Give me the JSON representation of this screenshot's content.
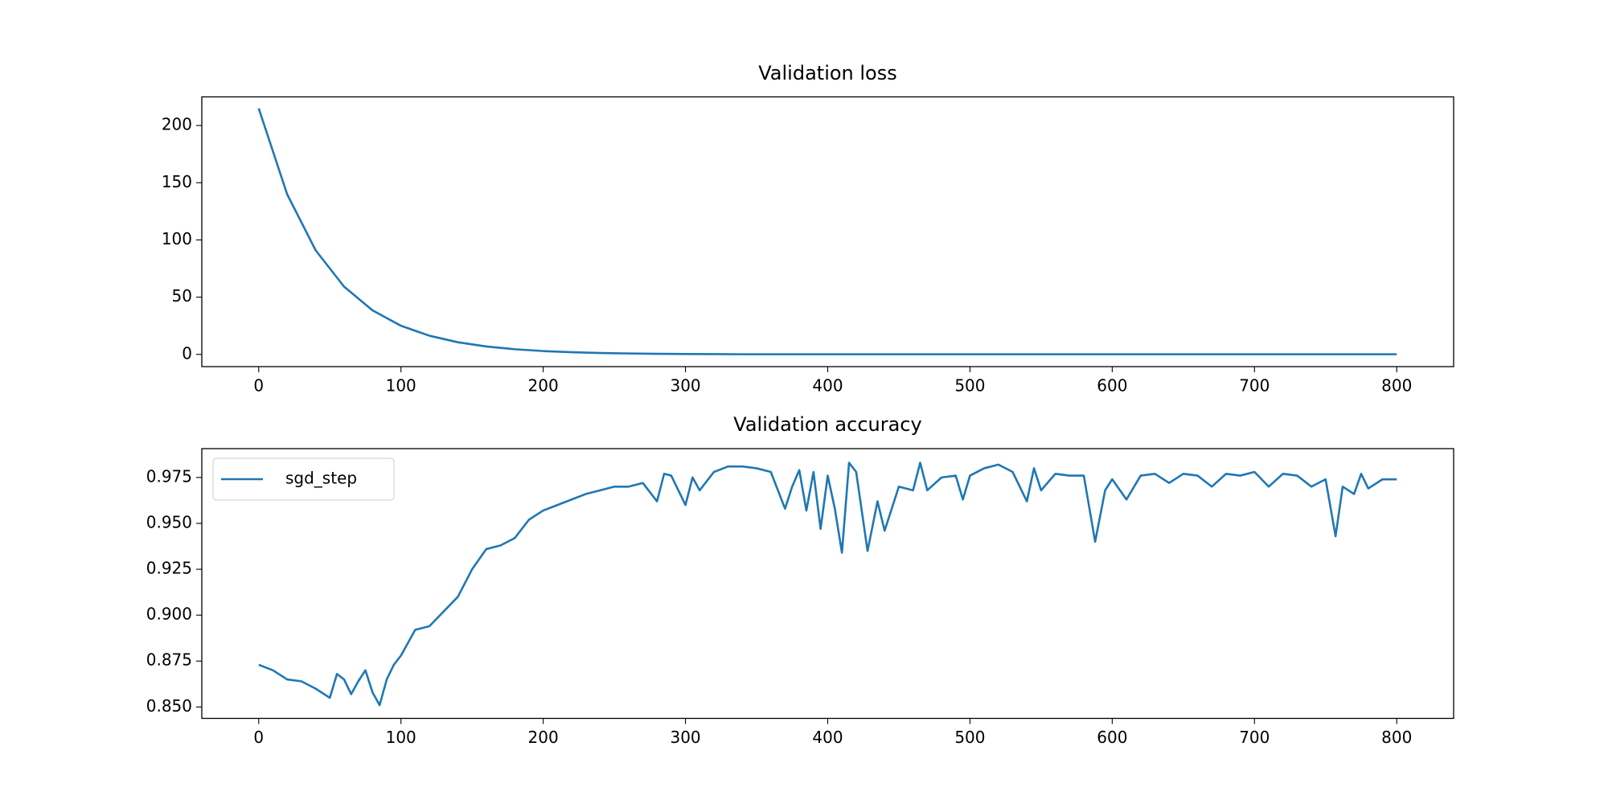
{
  "chart_data": [
    {
      "type": "line",
      "title": "Validation loss",
      "color": "#1f77b4",
      "x": [
        0,
        20,
        40,
        60,
        80,
        100,
        120,
        140,
        160,
        180,
        200,
        220,
        240,
        260,
        280,
        300,
        320,
        340,
        360,
        380,
        400,
        420,
        440,
        460,
        480,
        500,
        520,
        540,
        560,
        580,
        600,
        620,
        640,
        660,
        680,
        700,
        720,
        740,
        760,
        780,
        800
      ],
      "values": [
        215,
        139.9,
        91.0,
        59.2,
        38.5,
        25.0,
        16.3,
        10.6,
        6.9,
        4.5,
        2.9,
        1.9,
        1.2,
        0.8,
        0.5,
        0.3,
        0.2,
        0.1,
        0.1,
        0.1,
        0.1,
        0.1,
        0.1,
        0.1,
        0.1,
        0.1,
        0.1,
        0.1,
        0.1,
        0.1,
        0.1,
        0.1,
        0.1,
        0.1,
        0.1,
        0.1,
        0.1,
        0.1,
        0.1,
        0.1,
        0.1
      ],
      "xlim": [
        -40,
        840
      ],
      "xticks": [
        0,
        100,
        200,
        300,
        400,
        500,
        600,
        700,
        800
      ],
      "ylim": [
        -10.7,
        225
      ],
      "yticks": [
        0,
        50,
        100,
        150,
        200
      ]
    },
    {
      "type": "line",
      "title": "Validation accuracy",
      "legend": "upper left",
      "x": [
        0,
        10,
        20,
        30,
        40,
        50,
        55,
        60,
        65,
        70,
        75,
        80,
        85,
        90,
        95,
        100,
        110,
        120,
        130,
        140,
        150,
        160,
        170,
        180,
        190,
        200,
        210,
        220,
        230,
        240,
        250,
        260,
        270,
        280,
        285,
        290,
        300,
        305,
        310,
        320,
        330,
        340,
        350,
        360,
        370,
        375,
        380,
        385,
        390,
        395,
        400,
        405,
        410,
        415,
        420,
        428,
        435,
        440,
        450,
        460,
        465,
        470,
        480,
        490,
        495,
        500,
        510,
        520,
        530,
        540,
        545,
        550,
        560,
        570,
        580,
        588,
        595,
        600,
        610,
        620,
        630,
        640,
        650,
        660,
        670,
        680,
        690,
        700,
        710,
        720,
        730,
        740,
        750,
        757,
        762,
        770,
        775,
        780,
        790,
        800
      ],
      "series": [
        {
          "name": "sgd_step",
          "color": "#1f77b4",
          "values": [
            0.873,
            0.87,
            0.865,
            0.864,
            0.86,
            0.855,
            0.868,
            0.865,
            0.857,
            0.864,
            0.87,
            0.858,
            0.851,
            0.865,
            0.873,
            0.878,
            0.892,
            0.894,
            0.902,
            0.91,
            0.925,
            0.936,
            0.938,
            0.942,
            0.952,
            0.957,
            0.96,
            0.963,
            0.966,
            0.968,
            0.97,
            0.97,
            0.972,
            0.962,
            0.977,
            0.976,
            0.96,
            0.975,
            0.968,
            0.978,
            0.981,
            0.981,
            0.98,
            0.978,
            0.958,
            0.97,
            0.979,
            0.957,
            0.978,
            0.947,
            0.976,
            0.958,
            0.934,
            0.983,
            0.978,
            0.935,
            0.962,
            0.946,
            0.97,
            0.968,
            0.983,
            0.968,
            0.975,
            0.976,
            0.963,
            0.976,
            0.98,
            0.982,
            0.978,
            0.962,
            0.98,
            0.968,
            0.977,
            0.976,
            0.976,
            0.94,
            0.968,
            0.974,
            0.963,
            0.976,
            0.977,
            0.972,
            0.977,
            0.976,
            0.97,
            0.977,
            0.976,
            0.978,
            0.97,
            0.977,
            0.976,
            0.97,
            0.974,
            0.943,
            0.97,
            0.966,
            0.977,
            0.969,
            0.974,
            0.974
          ]
        }
      ],
      "xlim": [
        -40,
        840
      ],
      "xticks": [
        0,
        100,
        200,
        300,
        400,
        500,
        600,
        700,
        800
      ],
      "ylim": [
        0.8438,
        0.9907
      ],
      "yticks": [
        {
          "value": 0.85,
          "label": "0.850"
        },
        0.875,
        {
          "value": 0.9,
          "label": "0.900"
        },
        0.925,
        {
          "value": 0.95,
          "label": "0.950"
        },
        0.975
      ]
    }
  ]
}
